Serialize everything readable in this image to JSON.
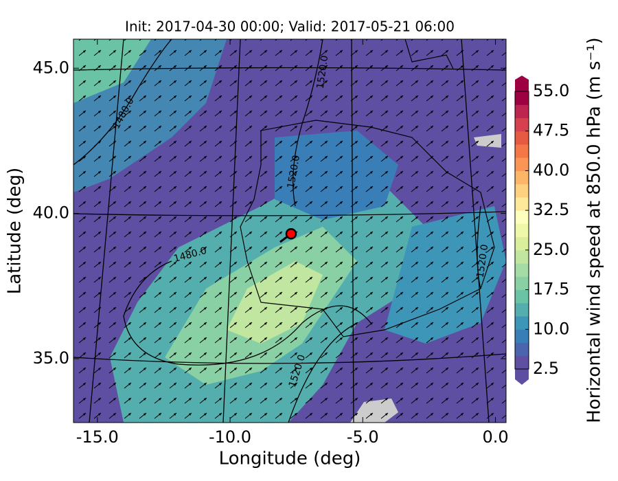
{
  "chart_data": {
    "type": "map",
    "title": "Init: 2017-04-30 00:00; Valid: 2017-05-21 06:00",
    "xlabel": "Longitude (deg)",
    "ylabel": "Latitude (deg)",
    "xlim": [
      -15.9,
      0.4
    ],
    "ylim": [
      32.8,
      46.0
    ],
    "xticks": [
      {
        "value": -15,
        "label": "-15.0"
      },
      {
        "value": -10,
        "label": "-10.0"
      },
      {
        "value": -5,
        "label": "-5.0"
      },
      {
        "value": 0,
        "label": "0.0"
      }
    ],
    "yticks": [
      {
        "value": 35,
        "label": "35.0"
      },
      {
        "value": 40,
        "label": "40.0"
      },
      {
        "value": 45,
        "label": "45.0"
      }
    ],
    "contour_labels": [
      "1480.0",
      "1520.0",
      "1520.0",
      "1480.0",
      "1520.0",
      "1520.0"
    ],
    "marker": {
      "x": [
        -7.7
      ],
      "values": [
        39.3
      ],
      "color": "#ff0000"
    },
    "colorbar": {
      "label": "Horizontal wind speed at 850.0 hPa (m s⁻¹)",
      "lim": [
        2.5,
        55
      ],
      "ticks": [
        2.5,
        {
          "value": 10,
          "label": "10.0"
        },
        17.5,
        {
          "value": 25,
          "label": "25.0"
        },
        32.5,
        {
          "value": 40,
          "label": "40.0"
        },
        47.5,
        {
          "value": 55,
          "label": "55.0"
        }
      ],
      "colors": [
        "#5e4fa2",
        "#4a64ad",
        "#3a7eb8",
        "#3d95b8",
        "#53aead",
        "#6ac3a5",
        "#89d0a4",
        "#a5dba4",
        "#c0e6a0",
        "#d9ef9b",
        "#eef8a8",
        "#fefebe",
        "#fee99a",
        "#fdd180",
        "#fdb567",
        "#f99555",
        "#f57748",
        "#e65943",
        "#d7404e",
        "#bd2550",
        "#9e0142"
      ]
    }
  }
}
